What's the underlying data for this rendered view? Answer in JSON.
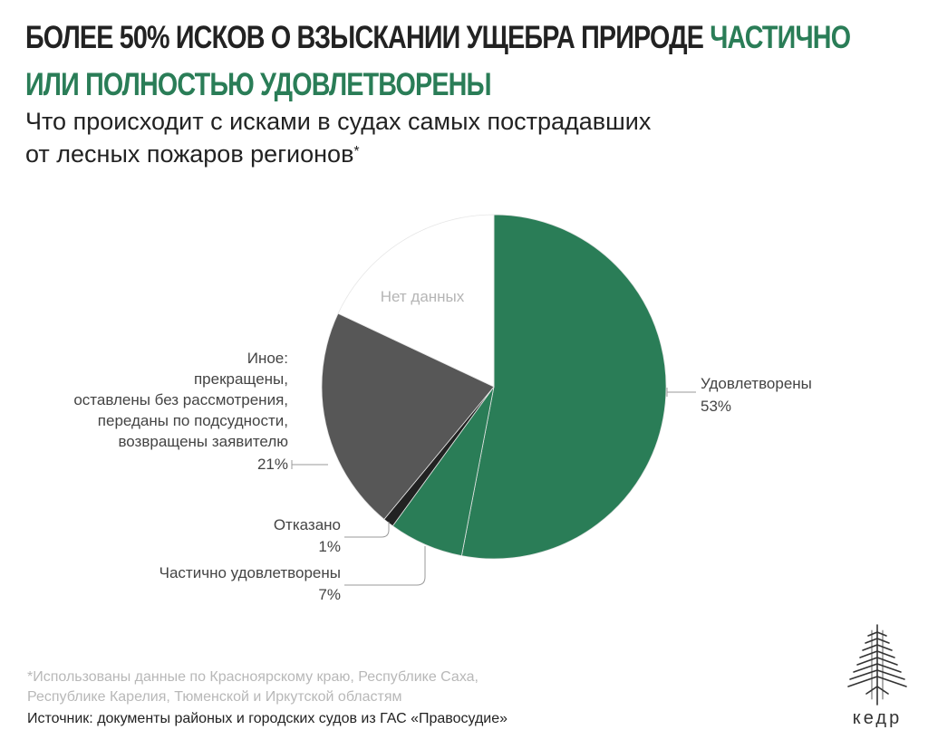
{
  "header": {
    "title_part1": "БОЛЕЕ 50% ИСКОВ О ВЗЫСКАНИИ УЩЕБРА ПРИРОДЕ ",
    "title_accent_1": "ЧАСТИЧНО",
    "title_accent_2": "ИЛИ ПОЛНОСТЬЮ УДОВЛЕТВОРЕНЫ",
    "subtitle_line1": "Что происходит с исками в судах самых пострадавших",
    "subtitle_line2": "от лесных пожаров регионов",
    "subtitle_mark": "*"
  },
  "chart_data": {
    "type": "pie",
    "slices": [
      {
        "label": "Удовлетворены",
        "value": 53,
        "value_label": "53%",
        "color": "#2a7d57"
      },
      {
        "label": "Частично удовлетворены",
        "value": 7,
        "value_label": "7%",
        "color": "#2a7d57"
      },
      {
        "label": "Отказано",
        "value": 1,
        "value_label": "1%",
        "color": "#222222"
      },
      {
        "label": "Иное: прекращены, оставлены без рассмотрения, переданы по подсудности, возвращены заявителю",
        "value": 21,
        "value_label": "21%",
        "color": "#575757"
      },
      {
        "label": "Нет данных",
        "value": 18,
        "value_label": "",
        "color": "#ffffff"
      }
    ],
    "other_label_lines": [
      "Иное:",
      "прекращены,",
      "оставлены без рассмотрения,",
      "переданы по подсудности,",
      "возвращены заявителю"
    ]
  },
  "footer": {
    "footnote_line1": "*Использованы данные по Красноярскому краю, Республике Саха,",
    "footnote_line2": "Республике Карелия, Тюменской и Иркутской областям",
    "source": "Источник: документы районых и городских судов из ГАС «Правосудие»",
    "logo_text": "кедр"
  },
  "colors": {
    "accent": "#2a7d57",
    "text": "#222222",
    "muted": "#b5b5b5"
  }
}
